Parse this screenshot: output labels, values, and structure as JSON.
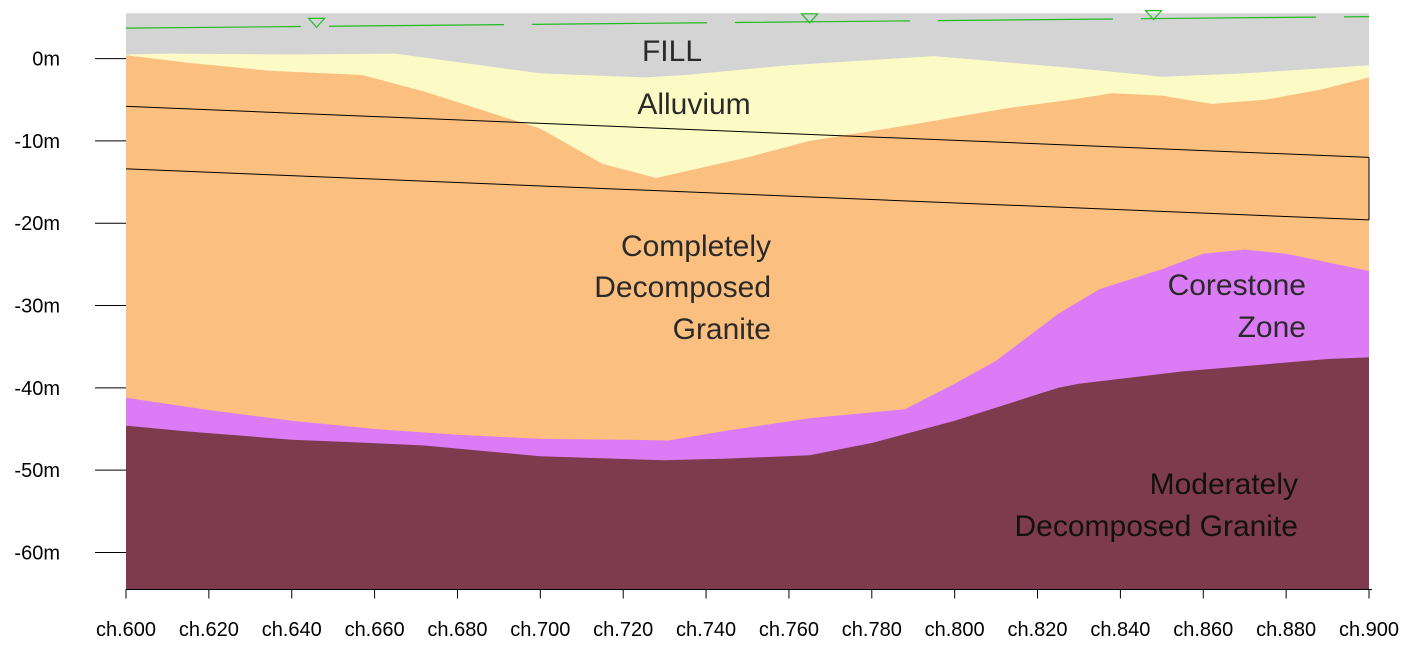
{
  "chart_data": {
    "type": "geological-cross-section",
    "x_unit": "chainage",
    "x_ticks": [
      "ch.600",
      "ch.620",
      "ch.640",
      "ch.660",
      "ch.680",
      "ch.700",
      "ch.720",
      "ch.740",
      "ch.760",
      "ch.780",
      "ch.800",
      "ch.820",
      "ch.840",
      "ch.860",
      "ch.880",
      "ch.900"
    ],
    "y_ticks": [
      "0m",
      "-10m",
      "-20m",
      "-30m",
      "-40m",
      "-50m",
      "-60m"
    ],
    "y_tick_values": [
      0,
      -10,
      -20,
      -30,
      -40,
      -50,
      -60
    ],
    "xlim": [
      600,
      900
    ],
    "ylim": [
      -64.5,
      6
    ],
    "colors": {
      "fill": "#d4d4d4",
      "alluvium": "#fdfbc5",
      "cdg": "#fbbf80",
      "corestone": "#dc7bf6",
      "mdg": "#7e3b4d",
      "water": "#22bb22"
    },
    "layers": [
      {
        "id": "fill",
        "label": "FILL",
        "top": [
          [
            600,
            5.5
          ],
          [
            900,
            5.5
          ]
        ]
      },
      {
        "id": "alluvium",
        "label": "Alluvium",
        "top": [
          [
            600,
            0.5
          ],
          [
            610,
            0.6
          ],
          [
            640,
            0.5
          ],
          [
            665,
            0.6
          ],
          [
            700,
            -1.8
          ],
          [
            725,
            -2.3
          ],
          [
            735,
            -2.0
          ],
          [
            760,
            -0.8
          ],
          [
            795,
            0.3
          ],
          [
            830,
            -1.2
          ],
          [
            850,
            -2.2
          ],
          [
            870,
            -1.8
          ],
          [
            900,
            -0.8
          ]
        ]
      },
      {
        "id": "cdg",
        "label": "Completely Decomposed Granite",
        "top": [
          [
            600,
            0.4
          ],
          [
            615,
            -0.5
          ],
          [
            635,
            -1.5
          ],
          [
            657,
            -2.0
          ],
          [
            672,
            -4.0
          ],
          [
            700,
            -8.5
          ],
          [
            715,
            -12.8
          ],
          [
            728,
            -14.5
          ],
          [
            750,
            -12.0
          ],
          [
            765,
            -10.0
          ],
          [
            790,
            -8.0
          ],
          [
            813,
            -6.0
          ],
          [
            828,
            -5.0
          ],
          [
            838,
            -4.2
          ],
          [
            850,
            -4.5
          ],
          [
            862,
            -5.5
          ],
          [
            875,
            -5.0
          ],
          [
            888,
            -3.8
          ],
          [
            900,
            -2.3
          ]
        ]
      },
      {
        "id": "corestone",
        "label": "Corestone Zone",
        "top": [
          [
            600,
            -41.2
          ],
          [
            620,
            -42.7
          ],
          [
            640,
            -44.0
          ],
          [
            660,
            -45.0
          ],
          [
            680,
            -45.7
          ],
          [
            700,
            -46.2
          ],
          [
            720,
            -46.3
          ],
          [
            731,
            -46.4
          ],
          [
            745,
            -45.2
          ],
          [
            765,
            -43.7
          ],
          [
            788,
            -42.6
          ],
          [
            800,
            -39.5
          ],
          [
            810,
            -36.7
          ],
          [
            825,
            -31.0
          ],
          [
            835,
            -28.0
          ],
          [
            850,
            -25.6
          ],
          [
            860,
            -23.7
          ],
          [
            870,
            -23.2
          ],
          [
            880,
            -23.7
          ],
          [
            900,
            -25.8
          ]
        ]
      },
      {
        "id": "mdg",
        "label": "Moderately Decomposed Granite",
        "top": [
          [
            600,
            -44.6
          ],
          [
            615,
            -45.3
          ],
          [
            640,
            -46.3
          ],
          [
            655,
            -46.6
          ],
          [
            672,
            -47.0
          ],
          [
            700,
            -48.3
          ],
          [
            730,
            -48.8
          ],
          [
            745,
            -48.6
          ],
          [
            765,
            -48.2
          ],
          [
            780,
            -46.7
          ],
          [
            800,
            -44.0
          ],
          [
            825,
            -40.0
          ],
          [
            830,
            -39.5
          ],
          [
            855,
            -38.0
          ],
          [
            890,
            -36.5
          ],
          [
            900,
            -36.3
          ]
        ],
        "bottom": -64.5
      }
    ],
    "water_table": [
      [
        600,
        3.7
      ],
      [
        900,
        5.1
      ]
    ],
    "water_markers_x": [
      646,
      765,
      848
    ],
    "section_lines": [
      [
        [
          600,
          -5.8
        ],
        [
          900,
          -12.0
        ]
      ],
      [
        [
          600,
          -13.4
        ],
        [
          900,
          -19.6
        ]
      ]
    ]
  },
  "labels": {
    "fill": "FILL",
    "alluvium": "Alluvium",
    "cdg_1": "Completely",
    "cdg_2": "Decomposed",
    "cdg_3": "Granite",
    "corestone_1": "Corestone",
    "corestone_2": "Zone",
    "mdg_1": "Moderately",
    "mdg_2": "Decomposed Granite"
  }
}
